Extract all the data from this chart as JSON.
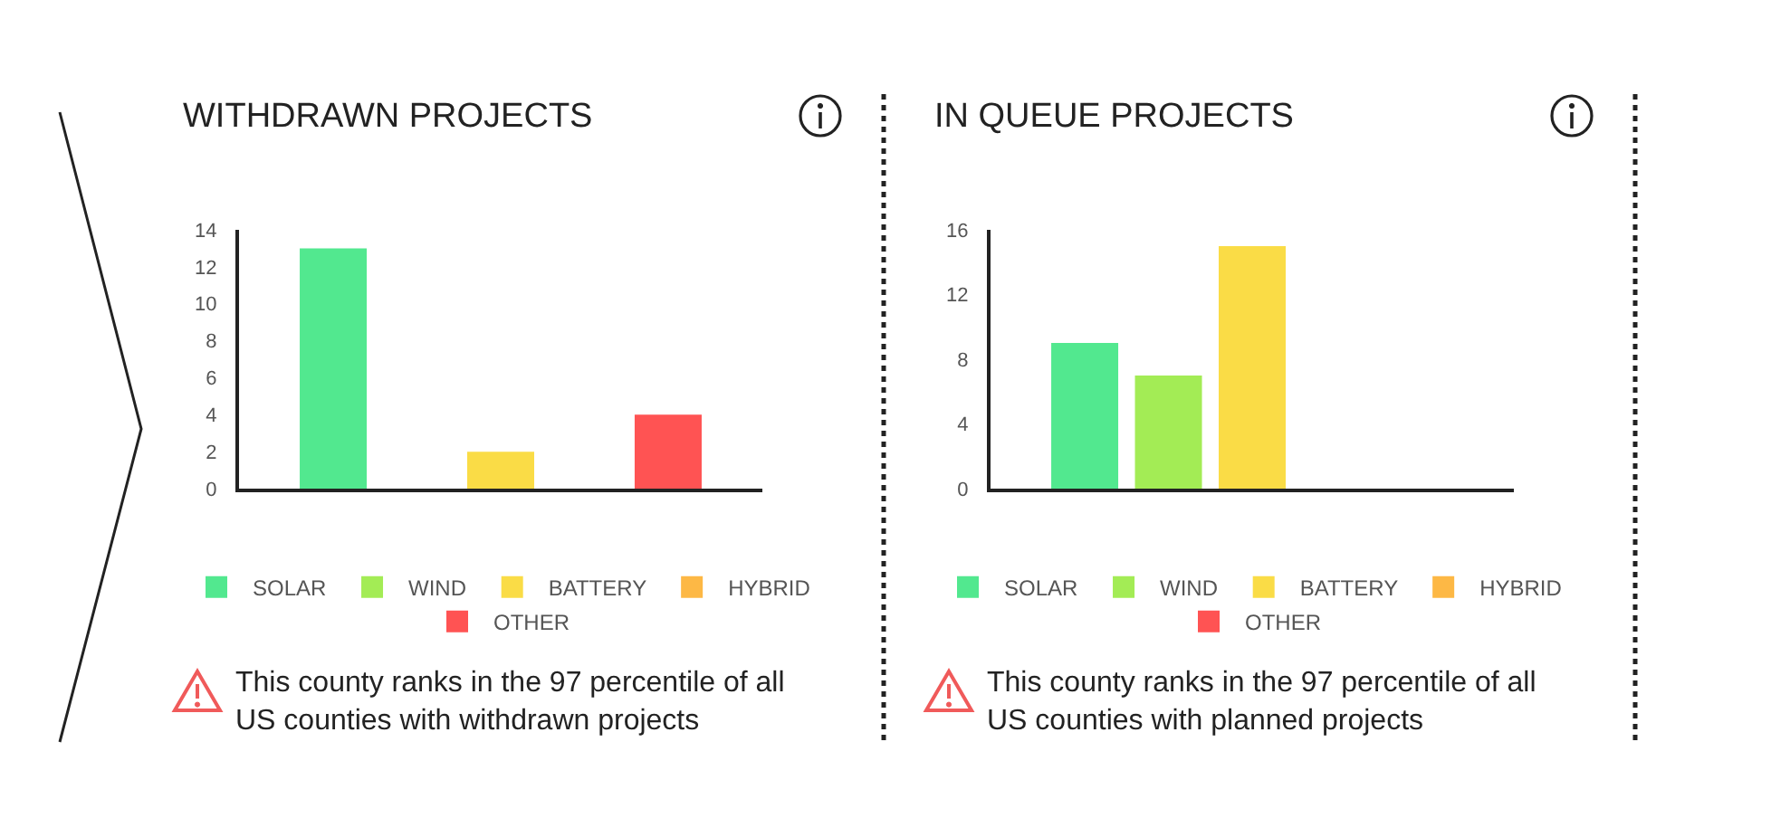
{
  "chart_data": [
    {
      "type": "bar",
      "title": "WITHDRAWN PROJECTS",
      "categories": [
        null
      ],
      "series": [
        {
          "name": "SOLAR",
          "color": "#52e88f",
          "values": [
            13
          ]
        },
        {
          "name": "WIND",
          "color": "#a3ec55",
          "values": [
            0
          ]
        },
        {
          "name": "BATTERY",
          "color": "#fadc46",
          "values": [
            2
          ]
        },
        {
          "name": "HYBRID",
          "color": "#fdb845",
          "values": [
            0
          ]
        },
        {
          "name": "OTHER",
          "color": "#ff5353",
          "values": [
            4
          ]
        }
      ],
      "ylim": [
        0,
        14
      ],
      "yticks": [
        0,
        2,
        4,
        6,
        8,
        10,
        12,
        14
      ],
      "tick_labels": "y",
      "legend": "bottom",
      "annotations": [
        "This county ranks in the 97 percentile of all US counties with withdrawn projects"
      ]
    },
    {
      "type": "bar",
      "title": "IN QUEUE PROJECTS",
      "categories": [
        null
      ],
      "series": [
        {
          "name": "SOLAR",
          "color": "#52e88f",
          "values": [
            9
          ]
        },
        {
          "name": "WIND",
          "color": "#a3ec55",
          "values": [
            7
          ]
        },
        {
          "name": "BATTERY",
          "color": "#fadc46",
          "values": [
            15
          ]
        },
        {
          "name": "HYBRID",
          "color": "#fdb845",
          "values": [
            0
          ]
        },
        {
          "name": "OTHER",
          "color": "#ff5353",
          "values": [
            0
          ]
        }
      ],
      "ylim": [
        0,
        16
      ],
      "yticks": [
        0,
        4,
        8,
        12,
        16
      ],
      "tick_labels": "y",
      "legend": "bottom",
      "annotations": [
        "This county ranks in the 97 percentile of all US counties with planned projects"
      ]
    }
  ]
}
